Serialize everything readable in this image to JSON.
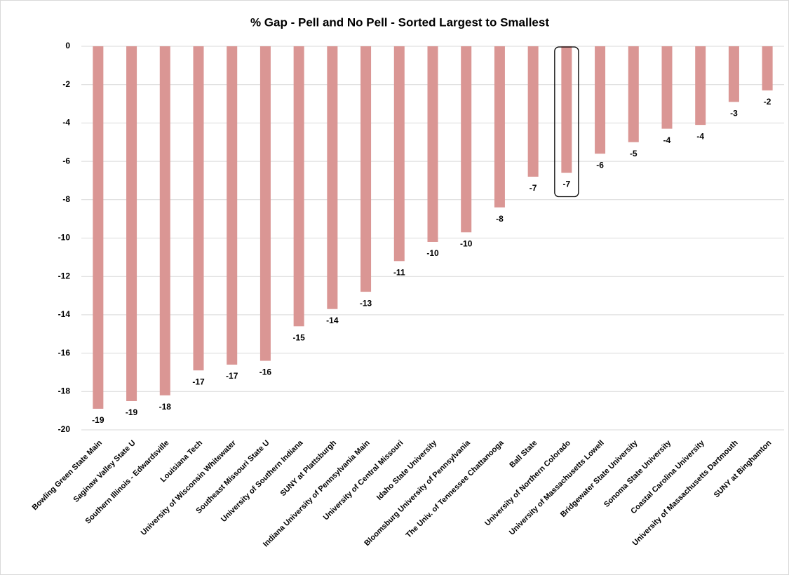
{
  "chart_data": {
    "type": "bar",
    "title": "% Gap - Pell and No Pell - Sorted Largest to Smallest",
    "categories": [
      "Bowling Green State Main",
      "Saginaw Valley State U",
      "Southern Illinois - Edwardsville",
      "Louisiana Tech",
      "University of Wisconsin Whitewater",
      "Southeast Missouri State U",
      "University of Southern Indiana",
      "SUNY at Plattsburgh",
      "Indiana University of Pennsylvania Main",
      "University of Central Missouri",
      "Idaho State University",
      "Bloomsburg University of Pennsylvania",
      "The Univ. of Tennessee Chattanooga",
      "Ball State",
      "University of Northern Colorado",
      "University of Massachusetts Lowell",
      "Bridgewater State University",
      "Sonoma State University",
      "Coastal Carolina University",
      "University of Massachusetts Dartmouth",
      "SUNY at Binghamton"
    ],
    "values": [
      -18.9,
      -18.5,
      -18.2,
      -16.9,
      -16.6,
      -16.4,
      -14.6,
      -13.7,
      -12.8,
      -11.2,
      -10.2,
      -9.7,
      -8.4,
      -6.8,
      -6.6,
      -5.6,
      -5.0,
      -4.3,
      -4.1,
      -2.9,
      -2.3
    ],
    "value_labels": [
      "-19",
      "-19",
      "-18",
      "-17",
      "-17",
      "-16",
      "-15",
      "-14",
      "-13",
      "-11",
      "-10",
      "-10",
      "-8",
      "-7",
      "-7",
      "-6",
      "-5",
      "-4",
      "-4",
      "-3",
      "-2"
    ],
    "color": "#da9694",
    "ylim": [
      -20,
      0
    ],
    "yticks": [
      0,
      -2,
      -4,
      -6,
      -8,
      -10,
      -12,
      -14,
      -16,
      -18,
      -20
    ],
    "grid": true,
    "highlight": 14
  }
}
